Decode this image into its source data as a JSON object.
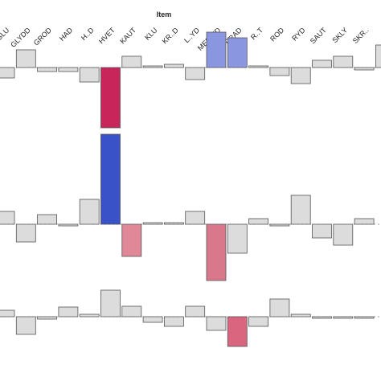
{
  "chart_data": [
    {
      "type": "bar",
      "title": "Item",
      "categories": [
        "GLU",
        "GLYDD",
        "GROD",
        "HAD",
        "H..D",
        "HVET",
        "KAUT",
        "KLU",
        "KR..D",
        "L..YD",
        "MERGID",
        "PRAD",
        "R..T",
        "ROD",
        "RYD",
        "SAUT",
        "SKLY",
        "SKR..",
        null
      ],
      "values": [
        -13,
        22,
        -5,
        -5,
        -18,
        -75,
        14,
        2,
        4,
        -15,
        44,
        37,
        2,
        -10,
        -20,
        9,
        14,
        -3,
        28
      ],
      "colors": [
        "#dcdcdc",
        "#dcdcdc",
        "#dcdcdc",
        "#dcdcdc",
        "#dcdcdc",
        "#c8265a",
        "#dcdcdc",
        "#dcdcdc",
        "#dcdcdc",
        "#dcdcdc",
        "#8b96e0",
        "#8b96e0",
        "#dcdcdc",
        "#dcdcdc",
        "#dcdcdc",
        "#dcdcdc",
        "#dcdcdc",
        "#dcdcdc",
        "#dcdcdc"
      ],
      "ylim": [
        -80,
        45
      ]
    },
    {
      "type": "bar",
      "values": [
        16,
        -22,
        12,
        -2,
        31,
        112,
        -40,
        2,
        2,
        16,
        -70,
        -36,
        7,
        -2,
        36,
        -17,
        -26,
        7,
        0
      ],
      "colors": [
        "#dcdcdc",
        "#dcdcdc",
        "#dcdcdc",
        "#dcdcdc",
        "#dcdcdc",
        "#3a52c8",
        "#e08898",
        "#dcdcdc",
        "#dcdcdc",
        "#dcdcdc",
        "#d9788a",
        "#dcdcdc",
        "#dcdcdc",
        "#dcdcdc",
        "#dcdcdc",
        "#dcdcdc",
        "#dcdcdc",
        "#dcdcdc",
        "#dcdcdc"
      ],
      "ylim": [
        -75,
        115
      ]
    },
    {
      "type": "bar",
      "values": [
        8,
        -22,
        -3,
        12,
        3,
        33,
        13,
        -7,
        -12,
        13,
        -17,
        -37,
        -12,
        22,
        3,
        -2,
        -2,
        -2,
        0
      ],
      "colors": [
        "#dcdcdc",
        "#dcdcdc",
        "#dcdcdc",
        "#dcdcdc",
        "#dcdcdc",
        "#dcdcdc",
        "#dcdcdc",
        "#dcdcdc",
        "#dcdcdc",
        "#dcdcdc",
        "#dcdcdc",
        "#d9667e",
        "#dcdcdc",
        "#dcdcdc",
        "#dcdcdc",
        "#dcdcdc",
        "#dcdcdc",
        "#dcdcdc",
        "#dcdcdc"
      ],
      "ylim": [
        -40,
        40
      ]
    }
  ]
}
